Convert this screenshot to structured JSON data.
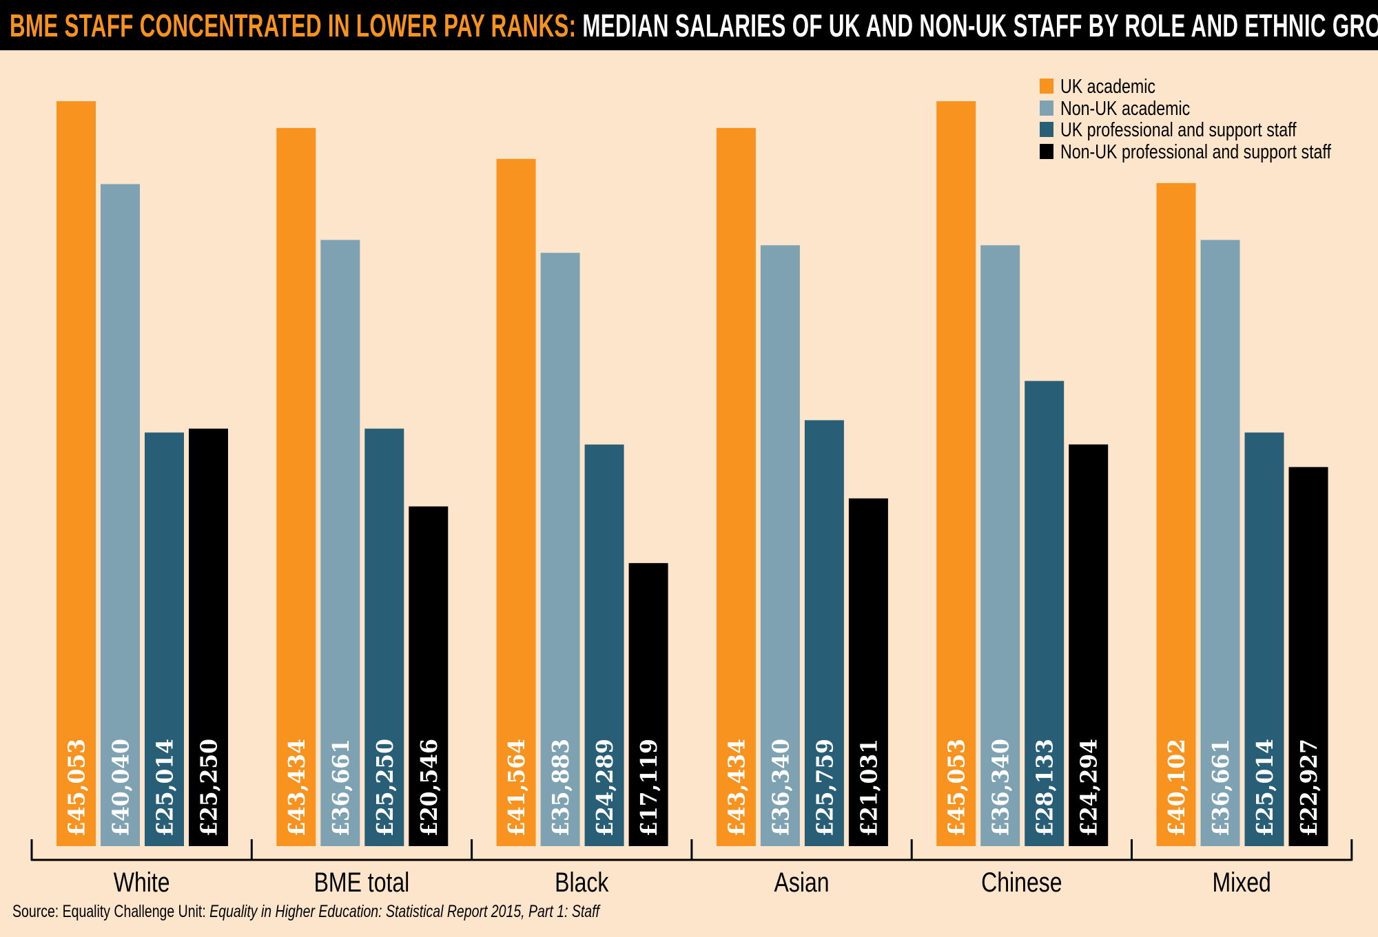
{
  "title": {
    "highlight": "BME STAFF CONCENTRATED IN LOWER PAY RANKS:",
    "main": " MEDIAN SALARIES OF UK AND NON-UK STAFF BY ROLE AND ETHNIC GROUP"
  },
  "source": {
    "prefix": "Source: Equality Challenge Unit: ",
    "italic": "Equality in Higher Education: Statistical Report 2015, Part 1: Staff"
  },
  "chart_data": {
    "type": "bar",
    "title": "BME STAFF CONCENTRATED IN LOWER PAY RANKS: MEDIAN SALARIES OF UK AND NON-UK STAFF BY ROLE AND ETHNIC GROUP",
    "categories": [
      "White",
      "BME total",
      "Black",
      "Asian",
      "Chinese",
      "Mixed"
    ],
    "series": [
      {
        "name": "UK academic",
        "color": "#f7931e",
        "values": [
          45053,
          43434,
          41564,
          43434,
          45053,
          40102
        ]
      },
      {
        "name": "Non-UK academic",
        "color": "#7fa2b2",
        "values": [
          40040,
          36661,
          35883,
          36340,
          36340,
          36661
        ]
      },
      {
        "name": "UK professional and support staff",
        "color": "#285f77",
        "values": [
          25014,
          25250,
          24289,
          25759,
          28133,
          25014
        ]
      },
      {
        "name": "Non-UK professional and support staff",
        "color": "#000000",
        "values": [
          25250,
          20546,
          17119,
          21031,
          24294,
          22927
        ]
      }
    ],
    "value_prefix": "£",
    "xlabel": "",
    "ylabel": "",
    "ylim": [
      0,
      45053
    ],
    "grid": false,
    "legend_position": "top-right"
  }
}
